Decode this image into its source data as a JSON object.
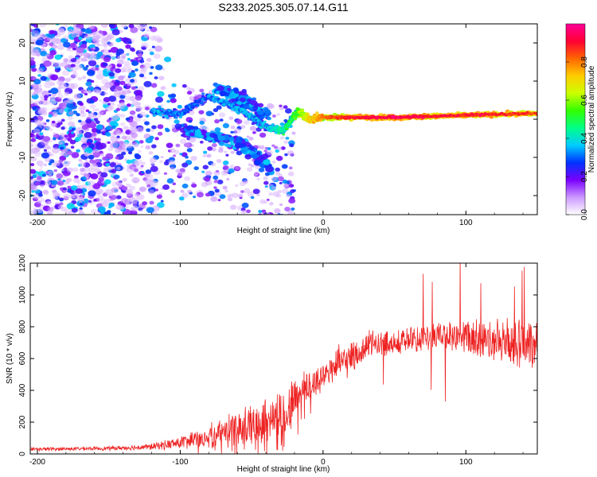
{
  "title": "S233.2025.305.07.14.G11",
  "chart_data": [
    {
      "type": "heatmap",
      "title": "S233.2025.305.07.14.G11",
      "xlabel": "Height of straight line (km)",
      "ylabel": "Frequency (Hz)",
      "xlim": [
        -205,
        150
      ],
      "ylim": [
        -25,
        25
      ],
      "xticks": [
        -200,
        -100,
        0,
        100
      ],
      "yticks": [
        -20,
        -10,
        0,
        10,
        20
      ],
      "colorbar": {
        "label": "Normalized spectral amplitude",
        "range": [
          0,
          1
        ],
        "ticks": [
          "0.0",
          "0.2",
          "0.4",
          "0.6",
          "0.8"
        ],
        "colors": [
          "#ffffff",
          "#cc99ff",
          "#7a00ff",
          "#0033ff",
          "#00ccff",
          "#00ff88",
          "#33ff00",
          "#ccff00",
          "#ffcc00",
          "#ff6600",
          "#ff0033",
          "#ff0099"
        ]
      },
      "features": {
        "main_trace": [
          {
            "x": -120,
            "y": 2,
            "amp": 0.35
          },
          {
            "x": -100,
            "y": 1.5,
            "amp": 0.3
          },
          {
            "x": -80,
            "y": 6,
            "amp": 0.3
          },
          {
            "x": -60,
            "y": 3,
            "amp": 0.35
          },
          {
            "x": -40,
            "y": -2,
            "amp": 0.35
          },
          {
            "x": -28,
            "y": -3,
            "amp": 0.45
          },
          {
            "x": -18,
            "y": 2,
            "amp": 0.55
          },
          {
            "x": -10,
            "y": 0,
            "amp": 0.7
          },
          {
            "x": 0,
            "y": 0.5,
            "amp": 0.8
          },
          {
            "x": 20,
            "y": 0.5,
            "amp": 0.9
          },
          {
            "x": 50,
            "y": 0.5,
            "amp": 0.95
          },
          {
            "x": 80,
            "y": 0.8,
            "amp": 0.9
          },
          {
            "x": 110,
            "y": 1.2,
            "amp": 0.9
          },
          {
            "x": 150,
            "y": 1.5,
            "amp": 0.85
          }
        ],
        "lower_branch": [
          {
            "x": -100,
            "y": -2
          },
          {
            "x": -80,
            "y": -4
          },
          {
            "x": -60,
            "y": -6
          },
          {
            "x": -45,
            "y": -10
          },
          {
            "x": -35,
            "y": -14
          }
        ],
        "upper_branch": [
          {
            "x": -75,
            "y": 8
          },
          {
            "x": -60,
            "y": 6
          },
          {
            "x": -50,
            "y": 4
          },
          {
            "x": -40,
            "y": 1
          }
        ],
        "noise_region": [
          -205,
          -105
        ]
      }
    },
    {
      "type": "line",
      "xlabel": "Height of straight line (km)",
      "ylabel": "SNR (10 * v/v)",
      "xlim": [
        -205,
        150
      ],
      "ylim": [
        0,
        1200
      ],
      "xticks": [
        -200,
        -100,
        0,
        100
      ],
      "yticks": [
        0,
        200,
        400,
        600,
        800,
        1000,
        1200
      ],
      "line_color": "#ee2222",
      "envelope": {
        "x": [
          -205,
          -150,
          -120,
          -100,
          -80,
          -60,
          -40,
          -25,
          -20,
          -10,
          0,
          10,
          20,
          30,
          40,
          60,
          80,
          100,
          120,
          135,
          150
        ],
        "mean": [
          30,
          35,
          45,
          70,
          110,
          160,
          220,
          260,
          350,
          420,
          500,
          560,
          600,
          680,
          700,
          710,
          730,
          740,
          720,
          700,
          680
        ],
        "spread": [
          10,
          12,
          20,
          40,
          70,
          100,
          140,
          160,
          140,
          120,
          100,
          110,
          100,
          90,
          80,
          80,
          90,
          110,
          130,
          140,
          140
        ]
      }
    }
  ]
}
